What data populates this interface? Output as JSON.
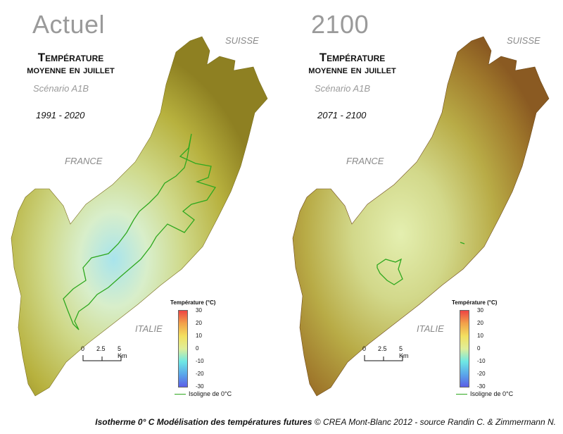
{
  "panels": [
    {
      "title": "Actuel",
      "heading_line1": "Température",
      "heading_line2": "moyenne en juillet",
      "scenario": "Scénario A1B",
      "period": "1991 - 2020"
    },
    {
      "title": "2100",
      "heading_line1": "Température",
      "heading_line2": "moyenne en juillet",
      "scenario": "Scénario A1B",
      "period": "2071 - 2100"
    }
  ],
  "labels": {
    "suisse": "SUISSE",
    "france": "FRANCE",
    "italie": "ITALIE"
  },
  "scale": {
    "ticks": [
      "0",
      "2.5",
      "5 Km"
    ]
  },
  "legend": {
    "title": "Température (°C)",
    "ticks": [
      "30",
      "20",
      "10",
      "0",
      "-10",
      "-20",
      "-30"
    ],
    "colors": [
      "#ee4444",
      "#f2a24a",
      "#f3e060",
      "#dfee9a",
      "#6fe8e4",
      "#5aa8ea",
      "#5b5fe6"
    ],
    "isoline_label": "Isoligne de 0°C",
    "isoline_color": "#2ea81e"
  },
  "caption": {
    "bold": "Isotherme 0° C Modélisation des températures futures",
    "rest": " © CREA Mont-Blanc 2012 - source Randin C. & Zimmermann N."
  }
}
